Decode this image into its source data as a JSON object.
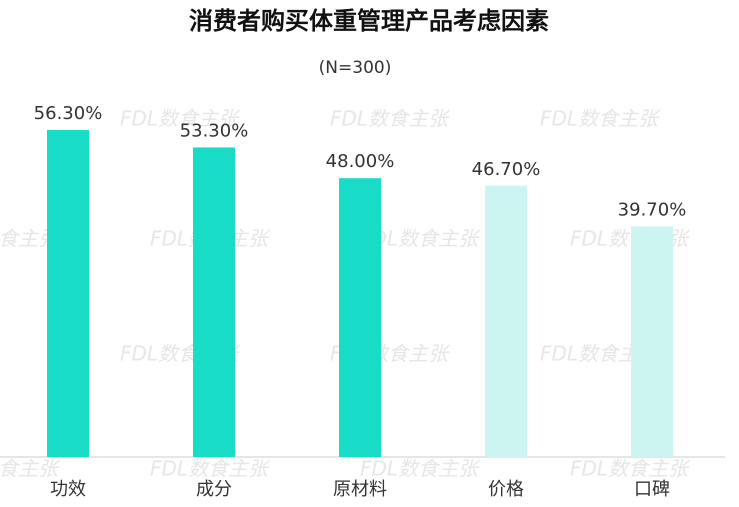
{
  "chart_data": {
    "type": "bar",
    "title": "消费者购买体重管理产品考虑因素",
    "subtitle": "(N=300)",
    "watermark": "FDL数食主张",
    "categories": [
      "功效",
      "成分",
      "原材料",
      "价格",
      "口碑"
    ],
    "values": [
      56.3,
      53.3,
      48.0,
      46.7,
      39.7
    ],
    "value_labels": [
      "56.30%",
      "53.30%",
      "48.00%",
      "46.70%",
      "39.70%"
    ],
    "colors": [
      "#19dcc6",
      "#19dcc6",
      "#19dcc6",
      "#ccf5f1",
      "#ccf5f1"
    ]
  }
}
